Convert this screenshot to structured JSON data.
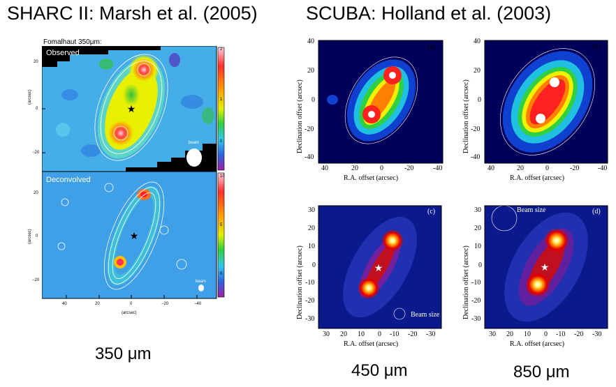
{
  "headings": {
    "left": "SHARC II:  Marsh et al. (2005)",
    "right": "SCUBA:  Holland et al. (2003)"
  },
  "sharc": {
    "title": "Fomalhaut 350μm:",
    "observed_label": "Observed",
    "deconvolved_label": "Deconvolved",
    "beam_label": "beam",
    "axis_unit": "(arcsec)",
    "x_ticks": [
      "40",
      "20",
      "0",
      "−20",
      "−40"
    ],
    "y_ticks": [
      "20",
      "0",
      "−20"
    ],
    "cbar_top_ticks": [
      "2",
      "1",
      "0"
    ],
    "cbar_bottom_ticks": [
      "10",
      "5",
      "0"
    ]
  },
  "scuba": {
    "panel_a": "(a)",
    "panel_b": "(b)",
    "panel_c": "(c)",
    "panel_d": "(d)",
    "beam_size": "Beam size",
    "xlabel": "R.A. offset (arcsec)",
    "ylabel": "Declination offset (arcsec)",
    "top_x_ticks": [
      "40",
      "20",
      "0",
      "-20",
      "-40"
    ],
    "top_y_ticks": [
      "40",
      "20",
      "0",
      "-20",
      "-40"
    ],
    "bottom_x_ticks": [
      "30",
      "20",
      "10",
      "0",
      "-10",
      "-20",
      "-30"
    ],
    "bottom_y_ticks": [
      "30",
      "20",
      "10",
      "0",
      "-10",
      "-20",
      "-30"
    ]
  },
  "captions": {
    "c350": "350 μm",
    "c450": "450 μm",
    "c850": "850 μm"
  },
  "colors": {
    "scuba_top_bg": "#00005a",
    "scuba_bottom_bg": "#0a1a8c",
    "sharc_bg": "#3fa0e8"
  }
}
